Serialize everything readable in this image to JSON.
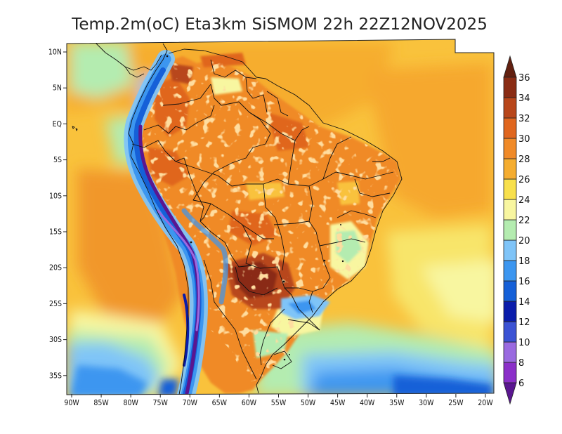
{
  "title": "Temp.2m(oC) Eta3km SiSMOM 22h 22Z12NOV2025",
  "map": {
    "lat_ticks": [
      "10N",
      "5N",
      "EQ",
      "5S",
      "10S",
      "15S",
      "20S",
      "25S",
      "30S",
      "35S"
    ],
    "lon_ticks": [
      "90W",
      "85W",
      "80W",
      "75W",
      "70W",
      "65W",
      "60W",
      "55W",
      "50W",
      "45W",
      "40W",
      "35W",
      "30W",
      "25W",
      "20W"
    ]
  },
  "colorbar": {
    "labels": [
      "6",
      "8",
      "10",
      "12",
      "14",
      "16",
      "18",
      "20",
      "22",
      "24",
      "26",
      "28",
      "30",
      "32",
      "34",
      "36"
    ],
    "colors": [
      "#5a1690",
      "#8b2fc9",
      "#9a6ae0",
      "#3b52d4",
      "#0a1cab",
      "#1560d8",
      "#3c96f0",
      "#7fc4f8",
      "#b4ecb0",
      "#f8f6a0",
      "#f8e04c",
      "#f5ad30",
      "#f08a28",
      "#e0661e",
      "#b8461a",
      "#8a2c14",
      "#622010"
    ]
  }
}
